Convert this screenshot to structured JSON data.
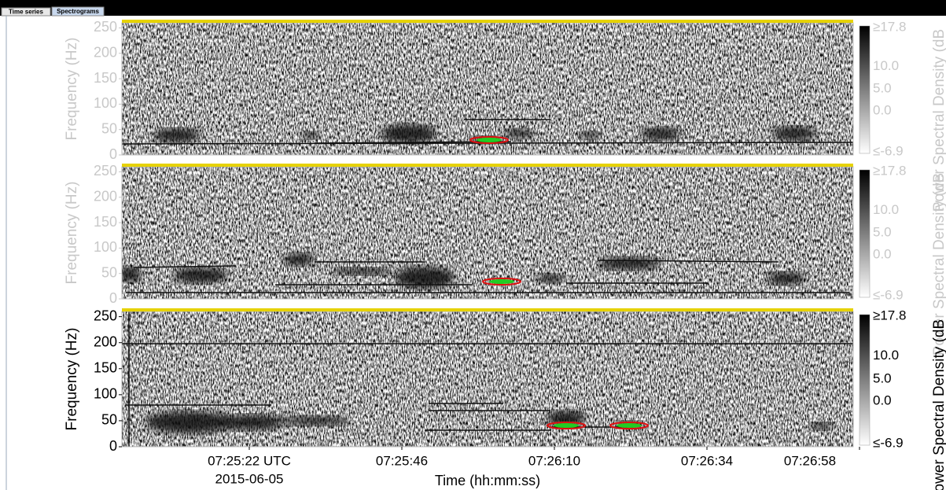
{
  "tabs": [
    "Time series",
    "Spectrograms"
  ],
  "panels": [
    {
      "active": false,
      "y_label": "Frequency (Hz)",
      "ylim": [
        0,
        260
      ],
      "yticks": [
        0,
        50,
        100,
        150,
        200,
        250
      ],
      "colorbar": {
        "ticks": [
          "≥17.8",
          "10.0",
          "5.0",
          "0.0",
          "≤-6.9"
        ],
        "label": "Power Spectral Density (dB"
      }
    },
    {
      "active": false,
      "y_label": "Frequency (Hz)",
      "ylim": [
        0,
        260
      ],
      "yticks": [
        0,
        50,
        100,
        150,
        200,
        250
      ],
      "colorbar": {
        "ticks": [
          "≥17.8",
          "10.0",
          "5.0",
          "0.0",
          "≤-6.9"
        ],
        "label": "Power Spectral Density (dB"
      }
    },
    {
      "active": true,
      "y_label": "Frequency (Hz)",
      "ylim": [
        0,
        260
      ],
      "yticks": [
        0,
        50,
        100,
        150,
        200,
        250
      ],
      "colorbar": {
        "ticks": [
          "≥17.8",
          "10.0",
          "5.0",
          "0.0",
          "≤-6.9"
        ],
        "label": "Power Spectral Density (dB"
      }
    }
  ],
  "x_axis": {
    "ticks": [
      "07:25:22 UTC",
      "07:25:46",
      "07:26:10",
      "07:26:34",
      "07:26:58"
    ],
    "date": "2015-06-05",
    "label": "Time (hh:mm:ss)"
  }
}
